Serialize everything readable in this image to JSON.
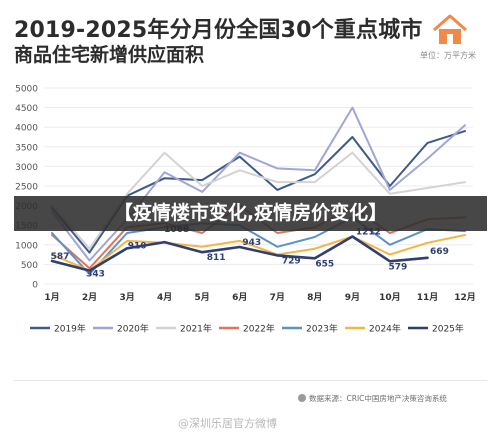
{
  "header": {
    "title_line1": "2019-2025年分月份全国30个重点城市",
    "title_line2": "商品住宅新增供应面积",
    "unit": "单位：万平方米",
    "logo_icon": "house-icon",
    "logo_color": "#f08a4b"
  },
  "banner": {
    "text": "【疫情楼市变化,疫情房价变化】"
  },
  "footer": {
    "source": "数据来源：CRIC中国房地产决策咨询系统",
    "watermark": "@深圳乐居官方微博"
  },
  "chart_data": {
    "type": "line",
    "categories": [
      "1月",
      "2月",
      "3月",
      "4月",
      "5月",
      "6月",
      "7月",
      "8月",
      "9月",
      "10月",
      "11月",
      "12月"
    ],
    "ylim": [
      0,
      5000
    ],
    "yticks": [
      "0",
      "500",
      "1000",
      "1500",
      "2000",
      "2500",
      "3000",
      "3500",
      "4000",
      "4500",
      "5000"
    ],
    "grid": "horizontal",
    "legend_position": "bottom",
    "series": [
      {
        "name": "2019年",
        "color": "#3d5a8a",
        "values": [
          1950,
          800,
          2250,
          2700,
          2650,
          3250,
          2400,
          2800,
          3750,
          2500,
          3600,
          3900
        ]
      },
      {
        "name": "2020年",
        "color": "#a0a6d6",
        "values": [
          1850,
          600,
          1650,
          2850,
          2350,
          3350,
          2950,
          2900,
          4500,
          2400,
          3200,
          4050
        ]
      },
      {
        "name": "2021年",
        "color": "#d3d3d3",
        "values": [
          2000,
          900,
          2300,
          3350,
          2500,
          2900,
          2600,
          2600,
          3350,
          2300,
          2450,
          2600
        ]
      },
      {
        "name": "2022年",
        "color": "#e2725b",
        "values": [
          1250,
          400,
          1450,
          1550,
          1300,
          2000,
          1300,
          1450,
          1950,
          1300,
          1650,
          1700
        ]
      },
      {
        "name": "2023年",
        "color": "#5b93c6",
        "values": [
          1300,
          250,
          1300,
          1450,
          1550,
          1500,
          950,
          1200,
          1700,
          1000,
          1400,
          1350
        ]
      },
      {
        "name": "2024年",
        "color": "#f4b544",
        "values": [
          750,
          343,
          1100,
          1050,
          950,
          1100,
          750,
          900,
          1212,
          750,
          1050,
          1250
        ]
      },
      {
        "name": "2025年",
        "color": "#2f3f70",
        "values": [
          587,
          343,
          910,
          1068,
          811,
          943,
          729,
          655,
          1212,
          579,
          669,
          null
        ]
      }
    ],
    "data_labels": [
      {
        "index": 0,
        "text": "587"
      },
      {
        "index": 1,
        "text": "343"
      },
      {
        "index": 2,
        "text": "910"
      },
      {
        "index": 3,
        "text": "1068"
      },
      {
        "index": 4,
        "text": "811"
      },
      {
        "index": 5,
        "text": "943"
      },
      {
        "index": 6,
        "text": "729"
      },
      {
        "index": 7,
        "text": "655"
      },
      {
        "index": 8,
        "text": "1212"
      },
      {
        "index": 9,
        "text": "579"
      },
      {
        "index": 10,
        "text": "669"
      }
    ]
  }
}
